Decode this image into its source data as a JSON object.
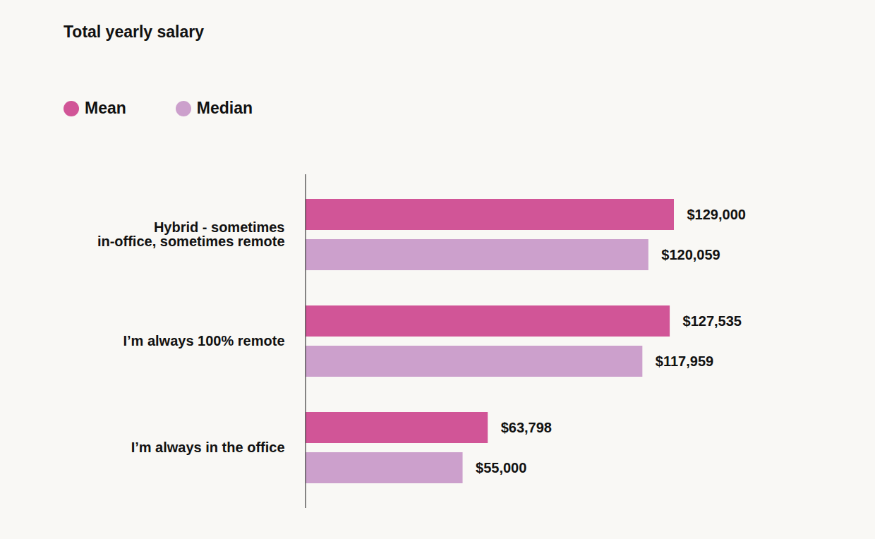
{
  "chart_data": {
    "type": "bar",
    "title": "Total yearly salary",
    "orientation": "horizontal",
    "categories": [
      "Hybrid - sometimes\nin-office, sometimes remote",
      "I’m always 100% remote",
      "I’m always in the office"
    ],
    "series": [
      {
        "name": "Mean",
        "color": "#d15597",
        "values": [
          129000,
          127535,
          63798
        ],
        "value_labels": [
          "$129,000",
          "$127,535",
          "$63,798"
        ]
      },
      {
        "name": "Median",
        "color": "#cca0cc",
        "values": [
          120059,
          117959,
          55000
        ],
        "value_labels": [
          "$120,059",
          "$117,959",
          "$55,000"
        ]
      }
    ],
    "xlim": [
      0,
      129000
    ],
    "tick_labels": "y",
    "data_labels": true,
    "legend": "top-left"
  }
}
